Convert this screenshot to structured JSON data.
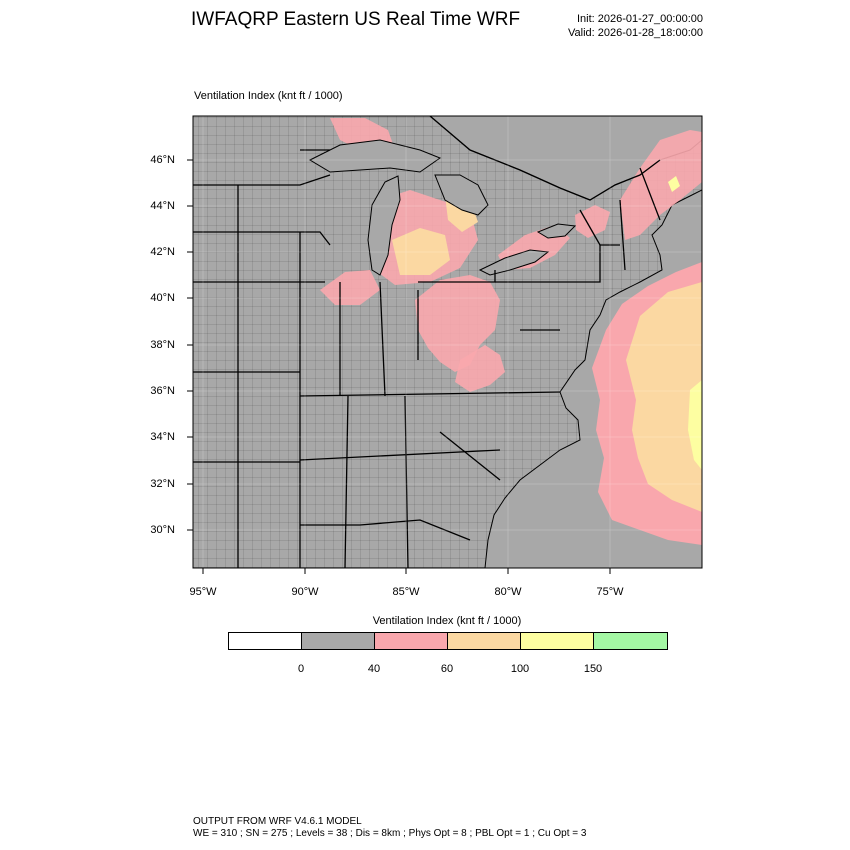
{
  "header": {
    "title": "IWFAQRP Eastern US Real Time WRF",
    "init": "Init: 2026-01-27_00:00:00",
    "valid": "Valid: 2026-01-28_18:00:00"
  },
  "map": {
    "field_label": "Ventilation Index   (knt ft / 1000)",
    "lat_labels": [
      "46°N",
      "44°N",
      "42°N",
      "40°N",
      "38°N",
      "36°N",
      "34°N",
      "32°N",
      "30°N"
    ],
    "lon_labels": [
      "95°W",
      "90°W",
      "85°W",
      "80°W",
      "75°W"
    ],
    "colors": {
      "land_base": "#a8a8a8",
      "ocean": "#a8a8a8",
      "boundary": "#000000",
      "pink": "#f9a7ad",
      "tan": "#fbd8a2",
      "yellow": "#fdfea1"
    }
  },
  "legend": {
    "title": "Ventilation Index  (knt ft / 1000)",
    "colors": [
      "#ffffff",
      "#a8a8a8",
      "#f9a7ad",
      "#fbd8a2",
      "#fdfea1",
      "#a4f7a4"
    ],
    "ticks": [
      "0",
      "40",
      "60",
      "100",
      "150"
    ]
  },
  "footer": {
    "line1": "OUTPUT FROM WRF V4.6.1 MODEL",
    "line2": "WE = 310 ; SN = 275 ; Levels = 38 ; Dis = 8km ; Phys Opt = 8 ; PBL Opt = 1 ; Cu Opt = 3"
  }
}
